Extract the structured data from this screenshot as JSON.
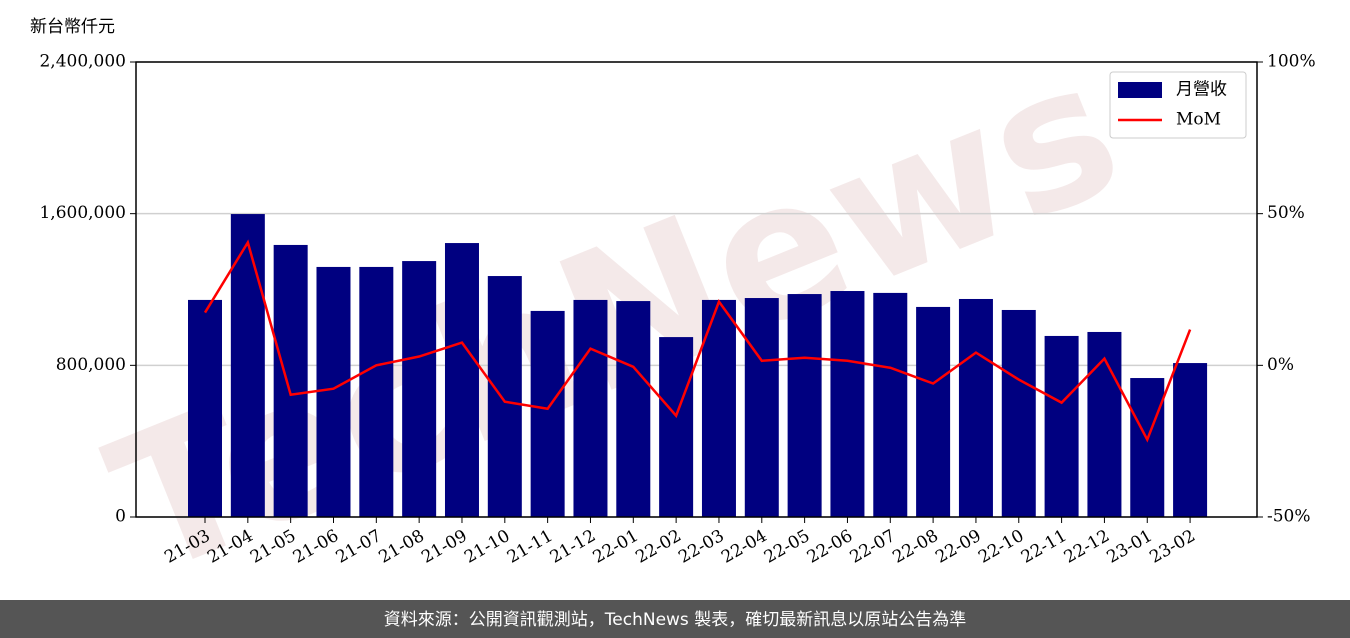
{
  "chart_data": {
    "type": "bar-line",
    "y_label": "新台幣仟元",
    "watermark": "TechNews",
    "footer": "資料來源：公開資訊觀測站，TechNews 製表，確切最新訊息以原站公告為準",
    "categories": [
      "21-03",
      "21-04",
      "21-05",
      "21-06",
      "21-07",
      "21-08",
      "21-09",
      "21-10",
      "21-11",
      "21-12",
      "22-01",
      "22-02",
      "22-03",
      "22-04",
      "22-05",
      "22-06",
      "22-07",
      "22-08",
      "22-09",
      "22-10",
      "22-11",
      "22-12",
      "23-01",
      "23-02"
    ],
    "series": [
      {
        "name": "月營收",
        "type": "bar",
        "color": "#000080",
        "values": [
          1145000,
          1598000,
          1435000,
          1319000,
          1319000,
          1350000,
          1445000,
          1271000,
          1087000,
          1145000,
          1139000,
          949000,
          1145000,
          1155000,
          1176000,
          1192000,
          1182000,
          1108000,
          1150000,
          1092000,
          955000,
          976000,
          733000,
          812000
        ]
      },
      {
        "name": "MoM",
        "type": "line",
        "axis": "y2",
        "color": "#ff0000",
        "values": [
          17.4,
          40.5,
          -9.7,
          -7.7,
          0,
          2.9,
          7.5,
          -12,
          -14.3,
          5.5,
          -0.5,
          -16.6,
          21,
          1.5,
          2.5,
          1.5,
          -0.8,
          -6,
          4.2,
          -4.7,
          -12.3,
          2.2,
          -24.5,
          11.8
        ]
      }
    ],
    "ylim": [
      0,
      2400000
    ],
    "yticks": [
      0,
      {
        "value": 800000,
        "label": "800,000"
      },
      {
        "value": 1600000,
        "label": "1,600,000"
      },
      {
        "value": 2400000,
        "label": "2,400,000"
      }
    ],
    "y2lim": [
      -50,
      100
    ],
    "y2ticks": [
      {
        "value": -50,
        "label": "-50%"
      },
      {
        "value": 0,
        "label": "0%"
      },
      {
        "value": 50,
        "label": "50%"
      },
      {
        "value": 100,
        "label": "100%"
      }
    ],
    "grid": true,
    "legend": "upper right"
  }
}
